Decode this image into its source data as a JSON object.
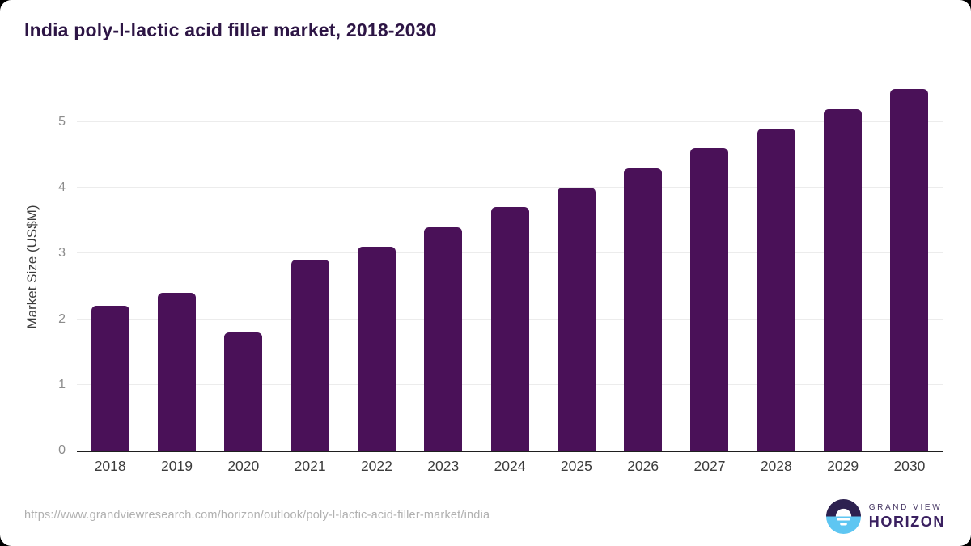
{
  "page": {
    "title": "India poly-l-lactic acid filler market, 2018-2030"
  },
  "chart_data": {
    "type": "bar",
    "title": "India poly-l-lactic acid filler market, 2018-2030",
    "categories": [
      "2018",
      "2019",
      "2020",
      "2021",
      "2022",
      "2023",
      "2024",
      "2025",
      "2026",
      "2027",
      "2028",
      "2029",
      "2030"
    ],
    "values": [
      2.2,
      2.4,
      1.8,
      2.9,
      3.1,
      3.4,
      3.7,
      4.0,
      4.3,
      4.6,
      4.9,
      5.2,
      5.5
    ],
    "xlabel": "",
    "ylabel": "Market Size (US$M)",
    "ylim": [
      0,
      5.6
    ],
    "yticks": [
      0,
      1,
      2,
      3,
      4,
      5
    ],
    "grid": true,
    "legend": "none",
    "bar_color": "#4a1158"
  },
  "colors": {
    "title": "#2d1545",
    "bar": "#4a1158",
    "gridline": "#ececec",
    "axis_line": "#1f1f1f",
    "y_tick": "#8c8c8c",
    "x_tick": "#3c3c3c",
    "url_text": "#b0b0b0",
    "logo_navy": "#2d2150",
    "logo_blue": "#5ec6f2"
  },
  "footer": {
    "source_url": "https://www.grandviewresearch.com/horizon/outlook/poly-l-lactic-acid-filler-market/india",
    "logo": {
      "icon": "grand-view-horizon-logo",
      "line1": "GRAND VIEW",
      "line2": "HORIZON"
    }
  }
}
